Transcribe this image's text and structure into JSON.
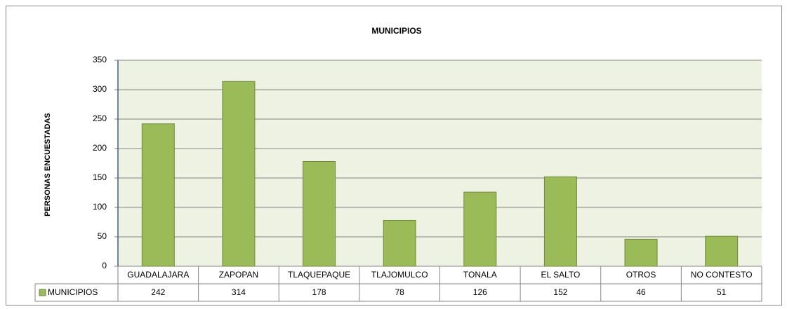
{
  "chart_data": {
    "type": "bar",
    "title": "MUNICIPIOS",
    "y_label": "PERSONAS ENCUESTADAS",
    "categories": [
      "GUADALAJARA",
      "ZAPOPAN",
      "TLAQUEPAQUE",
      "TLAJOMULCO",
      "TONALA",
      "EL SALTO",
      "OTROS",
      "NO CONTESTO"
    ],
    "series": [
      {
        "name": "MUNICIPIOS",
        "color": "#9bbb59",
        "values": [
          242,
          314,
          178,
          78,
          126,
          152,
          46,
          51
        ]
      }
    ],
    "ylim": [
      0,
      350
    ],
    "yticks": [
      0,
      50,
      100,
      150,
      200,
      250,
      300,
      350
    ],
    "grid": true
  }
}
